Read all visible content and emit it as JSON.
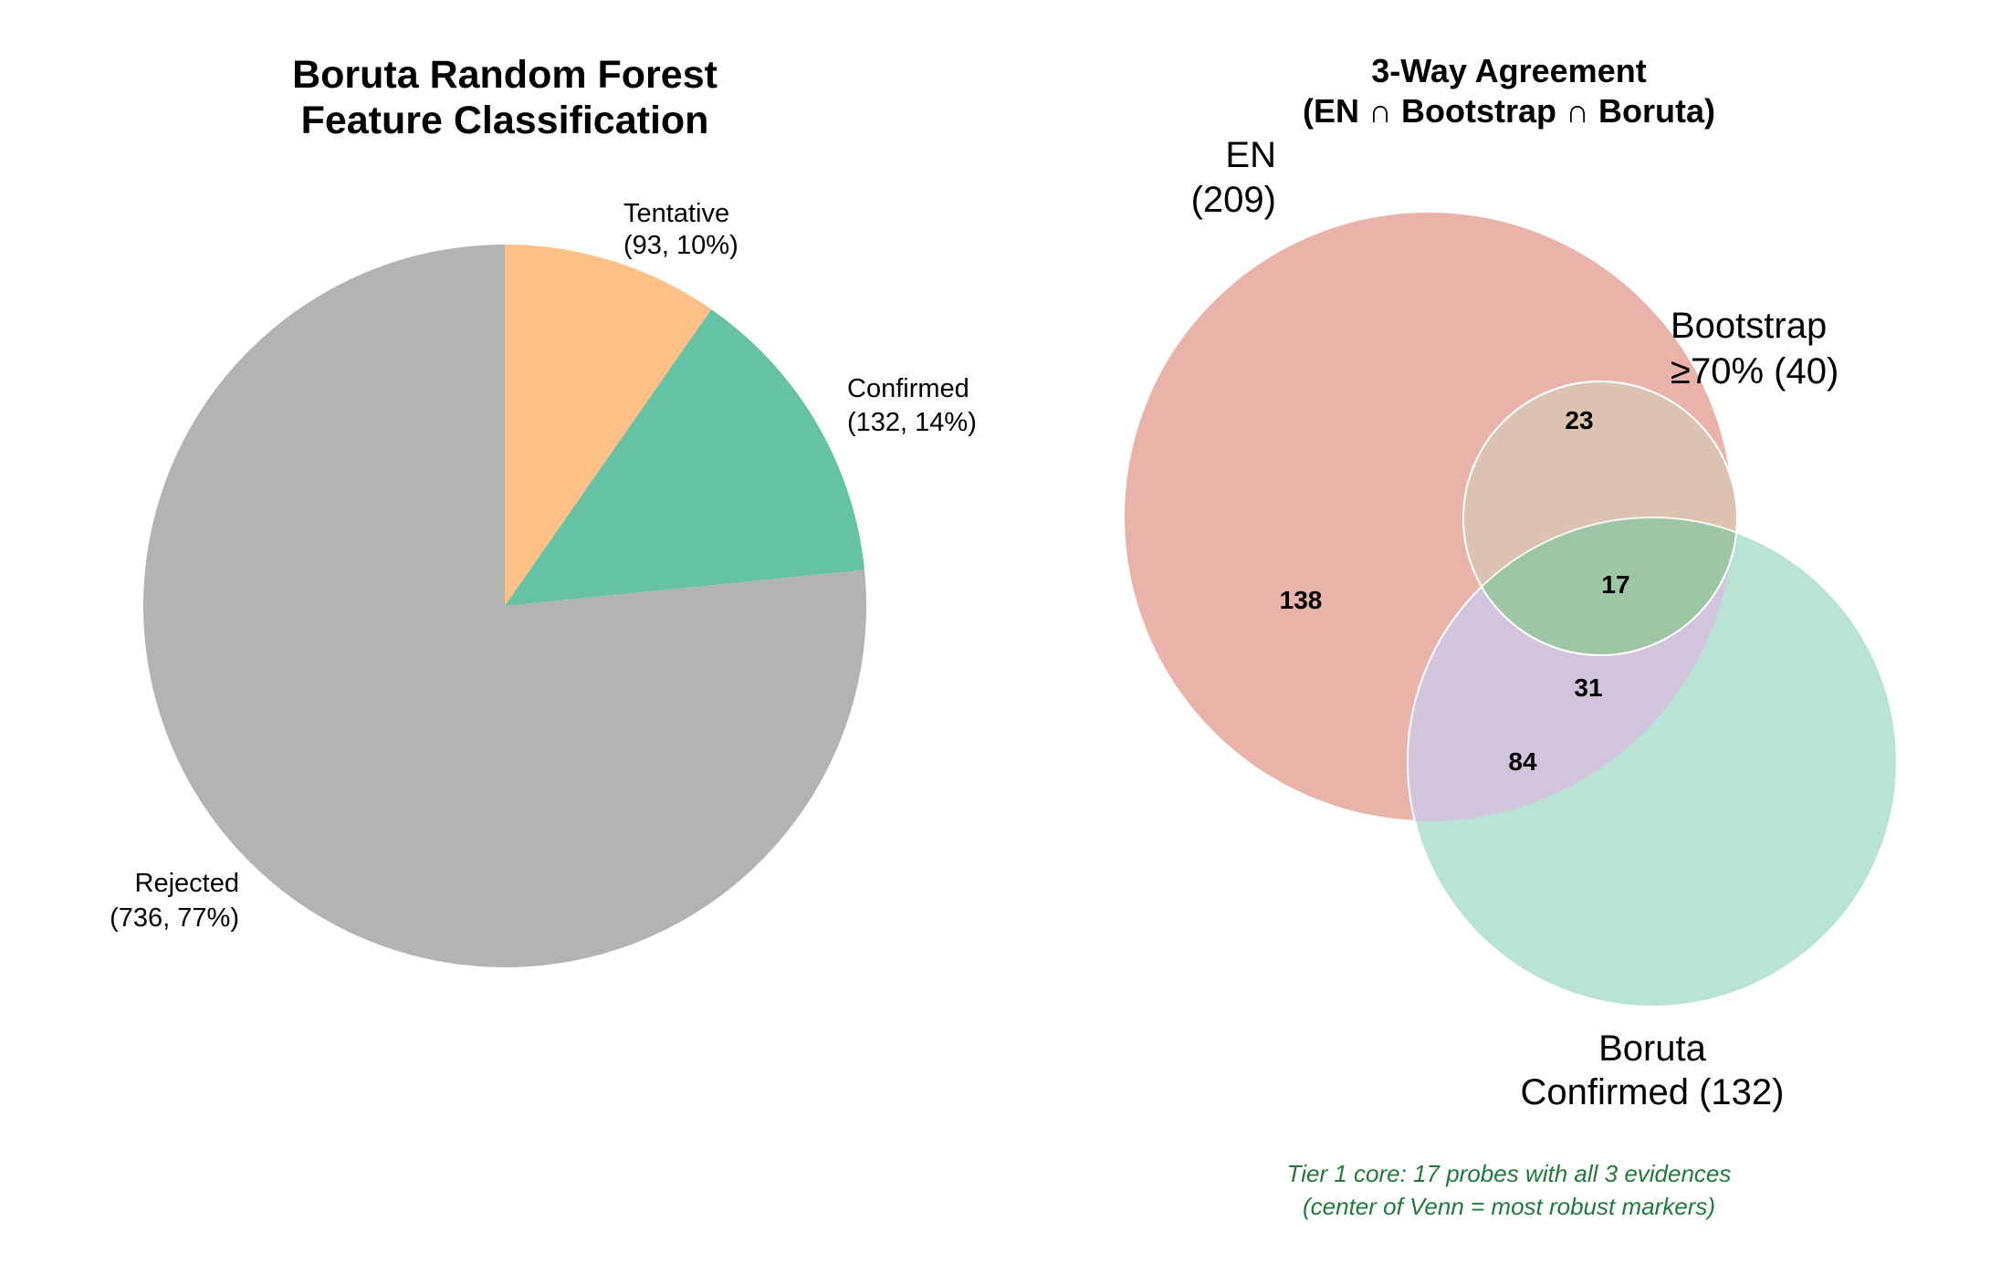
{
  "chart_data": [
    {
      "type": "pie",
      "title_lines": [
        "Boruta Random Forest",
        "Feature Classification"
      ],
      "slices": [
        {
          "label": "Tentative",
          "value": 93,
          "pct_text": "(93, 10%)",
          "color": "#fdc087"
        },
        {
          "label": "Confirmed",
          "value": 132,
          "pct_text": "(132, 14%)",
          "color": "#66c2a5"
        },
        {
          "label": "Rejected",
          "value": 736,
          "pct_text": "(736, 77%)",
          "color": "#b3b3b3"
        }
      ]
    },
    {
      "type": "venn",
      "title_lines": [
        "3-Way Agreement",
        "(EN ∩ Bootstrap ∩ Boruta)"
      ],
      "sets": [
        {
          "name": "EN",
          "label_lines": [
            "EN",
            "(209)"
          ],
          "size": 209,
          "color": "#e5a195"
        },
        {
          "name": "Bootstrap",
          "label_lines": [
            "Bootstrap",
            "≥70% (40)"
          ],
          "size": 40,
          "color": "#e5d0b0"
        },
        {
          "name": "Boruta",
          "label_lines": [
            "Boruta",
            "Confirmed (132)"
          ],
          "size": 132,
          "color": "#a8dfca"
        }
      ],
      "regions": [
        {
          "id": "en_only",
          "value": "138"
        },
        {
          "id": "en_bootstrap",
          "value": "23"
        },
        {
          "id": "all_three",
          "value": "17"
        },
        {
          "id": "en_boruta",
          "value": "31"
        },
        {
          "id": "boruta_en_lower",
          "value": "84"
        }
      ],
      "note_lines": [
        "Tier 1 core: 17 probes with all 3 evidences",
        "(center of Venn = most robust markers)"
      ],
      "note_color": "#1f7a3a"
    }
  ]
}
